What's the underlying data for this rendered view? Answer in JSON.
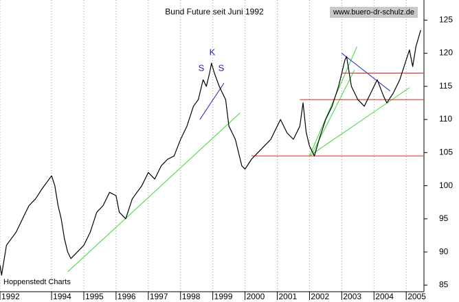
{
  "chart_data": {
    "type": "line",
    "title": "Bund Future seit Juni 1992",
    "source": "www.buero-dr-schulz.de",
    "credit": "Hoppenstedt Charts",
    "annotations": [
      "S",
      "K",
      "S"
    ],
    "x": [
      1992.4,
      1992.45,
      1992.6,
      1992.75,
      1992.9,
      1993.1,
      1993.3,
      1993.5,
      1993.7,
      1993.85,
      1994.0,
      1994.1,
      1994.2,
      1994.3,
      1994.4,
      1994.5,
      1994.6,
      1994.7,
      1994.8,
      1995.0,
      1995.2,
      1995.4,
      1995.6,
      1995.8,
      1996.0,
      1996.1,
      1996.3,
      1996.5,
      1996.65,
      1996.8,
      1997.0,
      1997.2,
      1997.4,
      1997.6,
      1997.8,
      1998.0,
      1998.2,
      1998.4,
      1998.55,
      1998.7,
      1998.8,
      1998.9,
      1998.96,
      1999.05,
      1999.2,
      1999.3,
      1999.4,
      1999.5,
      1999.7,
      1999.9,
      2000.0,
      2000.2,
      2000.4,
      2000.6,
      2000.8,
      2001.0,
      2001.1,
      2001.3,
      2001.5,
      2001.7,
      2001.8,
      2001.9,
      2002.0,
      2002.15,
      2002.3,
      2002.5,
      2002.7,
      2002.9,
      2003.0,
      2003.1,
      2003.15,
      2003.3,
      2003.5,
      2003.7,
      2003.9,
      2004.0,
      2004.1,
      2004.3,
      2004.4,
      2004.6,
      2004.8,
      2005.0,
      2005.1,
      2005.2,
      2005.3,
      2005.45
    ],
    "series": [
      {
        "color": "#000000",
        "values": [
          88,
          86.5,
          91,
          92,
          93,
          95,
          97,
          98,
          99.5,
          100.5,
          101.5,
          100,
          97,
          95,
          92,
          90,
          89,
          89.5,
          90,
          91,
          93,
          96,
          97,
          99,
          98.5,
          96,
          95,
          98,
          99,
          100,
          102,
          101,
          103,
          104,
          104.5,
          107,
          109,
          112,
          113,
          116,
          115,
          117,
          118.5,
          117,
          115,
          114,
          113,
          109,
          107,
          103,
          102.5,
          104,
          105,
          106,
          107,
          109,
          110,
          108,
          107,
          109,
          112.5,
          108,
          106,
          104.5,
          107,
          110,
          112,
          115,
          117,
          119,
          119.5,
          115,
          113,
          112,
          114,
          115,
          116,
          113.5,
          112.5,
          114,
          116,
          119,
          120.5,
          118,
          121,
          123.5
        ]
      }
    ],
    "trend_lines": [
      {
        "color": "#33dd33",
        "x": [
          1994.5,
          1999.85
        ],
        "y": [
          87,
          111
        ]
      },
      {
        "color": "#33dd33",
        "x": [
          2002.0,
          2005.1
        ],
        "y": [
          104.5,
          114.8
        ]
      },
      {
        "color": "#33dd33",
        "x": [
          2002.0,
          2003.47
        ],
        "y": [
          104.5,
          121
        ]
      },
      {
        "color": "#33dd33",
        "x": [
          2002.1,
          2003.4
        ],
        "y": [
          105,
          117.5
        ]
      },
      {
        "color": "#2222cc",
        "x": [
          1998.6,
          1999.35
        ],
        "y": [
          110,
          115.5
        ]
      },
      {
        "color": "#2222cc",
        "x": [
          2003.0,
          2004.5
        ],
        "y": [
          120,
          114.3
        ]
      },
      {
        "color": "#dd2222",
        "x": [
          2000.2,
          2005.55
        ],
        "y": [
          104.5,
          104.5
        ]
      },
      {
        "color": "#dd2222",
        "x": [
          2001.7,
          2005.55
        ],
        "y": [
          113,
          113
        ]
      },
      {
        "color": "#dd2222",
        "x": [
          2003.0,
          2005.55
        ],
        "y": [
          117,
          117
        ]
      }
    ],
    "xlim": [
      1992.4,
      2005.55
    ],
    "xticks": [
      {
        "value": 1992.4,
        "label": "1992"
      },
      1994,
      1995,
      1996,
      1997,
      1998,
      1999,
      2000,
      2001,
      2002,
      2003,
      2004,
      2005
    ],
    "ylim": [
      84,
      127
    ],
    "yticks": [
      85,
      90,
      95,
      100,
      105,
      110,
      115,
      120,
      125
    ],
    "grid": true
  }
}
